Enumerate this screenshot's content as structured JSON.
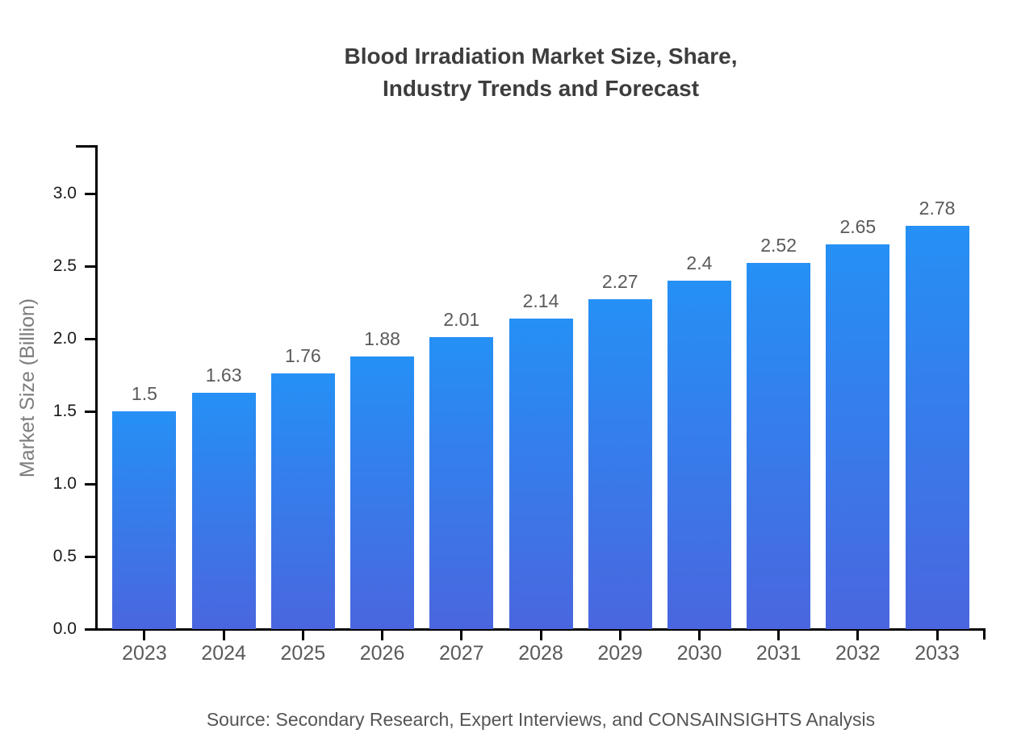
{
  "chart_data": {
    "type": "bar",
    "title": "Blood Irradiation Market Size, Share,\nIndustry Trends and Forecast",
    "categories": [
      "2023",
      "2024",
      "2025",
      "2026",
      "2027",
      "2028",
      "2029",
      "2030",
      "2031",
      "2032",
      "2033"
    ],
    "values": [
      1.5,
      1.63,
      1.76,
      1.88,
      2.01,
      2.14,
      2.27,
      2.4,
      2.52,
      2.65,
      2.78
    ],
    "value_labels": [
      "1.5",
      "1.63",
      "1.76",
      "1.88",
      "2.01",
      "2.14",
      "2.27",
      "2.4",
      "2.52",
      "2.65",
      "2.78"
    ],
    "xlabel": "",
    "ylabel": "Market Size (Billion)",
    "yticks": [
      0.0,
      0.5,
      1.0,
      1.5,
      2.0,
      2.5,
      3.0
    ],
    "ytick_labels": [
      "0.0",
      "0.5",
      "1.0",
      "1.5",
      "2.0",
      "2.5",
      "3.0"
    ],
    "ylim": [
      0,
      3.33
    ],
    "grid": false,
    "legend": "none",
    "bar_gradient_top": "#2590f5",
    "bar_gradient_bottom": "#4a66df"
  },
  "source_note": "Source: Secondary Research, Expert Interviews, and CONSAINSIGHTS Analysis",
  "colors": {
    "background": "#ffffff",
    "title_text": "#3d3d3d",
    "axis": "#000000",
    "y_tick_text": "#1a1a1a",
    "x_tick_text": "#5a5a5a",
    "value_label_text": "#5a5a5a",
    "y_axis_label_text": "#7d7d7d",
    "source_text": "#555555"
  }
}
